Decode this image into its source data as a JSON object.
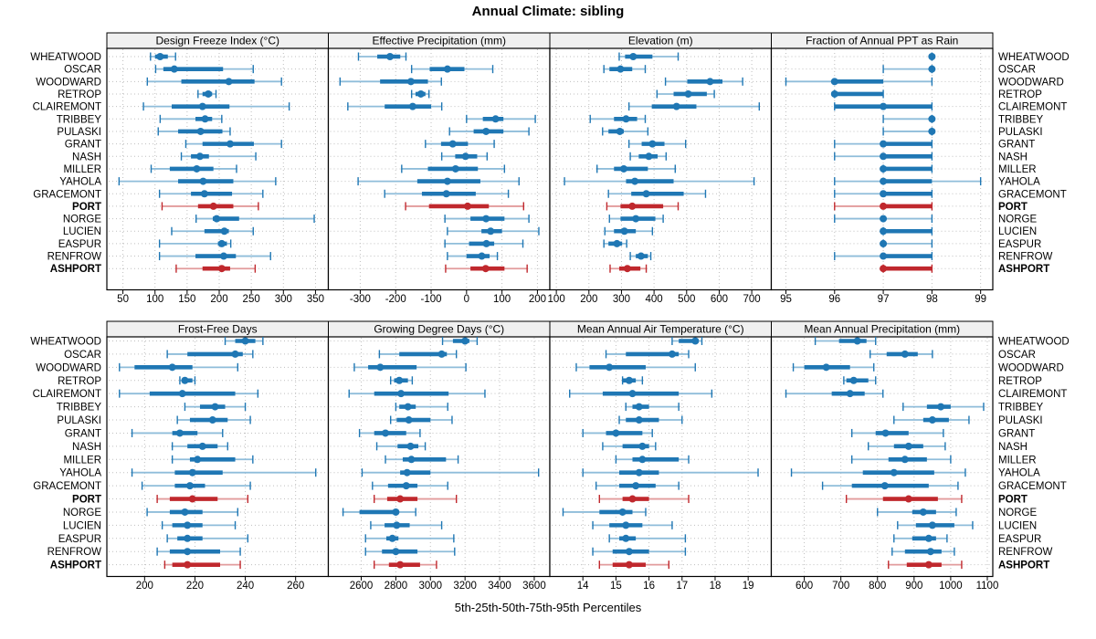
{
  "title": "Annual Climate: sibling",
  "caption": "5th-25th-50th-75th-95th Percentiles",
  "colors": {
    "normal": "#1f77b4",
    "normal_light": "#8fbdda",
    "highlight": "#c0282d",
    "highlight_light": "#e29b9c",
    "grid": "#bfbfbf",
    "strip_bg": "#f0f0f0",
    "border": "#000000"
  },
  "chart_data": {
    "type": "dot-interval",
    "percentiles": [
      5,
      25,
      50,
      75,
      95
    ],
    "rows": [
      "WHEATWOOD",
      "OSCAR",
      "WOODWARD",
      "RETROP",
      "CLAIREMONT",
      "TRIBBEY",
      "PULASKI",
      "GRANT",
      "NASH",
      "MILLER",
      "YAHOLA",
      "GRACEMONT",
      "PORT",
      "NORGE",
      "LUCIEN",
      "EASPUR",
      "RENFROW",
      "ASHPORT"
    ],
    "highlighted_rows": [
      "PORT",
      "ASHPORT"
    ],
    "panels": [
      {
        "title": "Design Freeze Index (°C)",
        "axis": {
          "min": 25,
          "max": 370,
          "ticks": [
            50,
            100,
            150,
            200,
            250,
            300,
            350
          ]
        },
        "values": [
          [
            93,
            100,
            108,
            120,
            132
          ],
          [
            101,
            113,
            130,
            206,
            253
          ],
          [
            88,
            141,
            215,
            255,
            297
          ],
          [
            167,
            174,
            183,
            189,
            195
          ],
          [
            82,
            126,
            174,
            216,
            309
          ],
          [
            108,
            163,
            178,
            189,
            204
          ],
          [
            105,
            136,
            171,
            205,
            217
          ],
          [
            148,
            174,
            217,
            254,
            297
          ],
          [
            141,
            156,
            170,
            184,
            257
          ],
          [
            94,
            123,
            165,
            191,
            227
          ],
          [
            44,
            136,
            175,
            222,
            288
          ],
          [
            107,
            156,
            177,
            220,
            268
          ],
          [
            111,
            167,
            191,
            222,
            261
          ],
          [
            164,
            190,
            196,
            231,
            348
          ],
          [
            126,
            177,
            208,
            215,
            253
          ],
          [
            107,
            198,
            204,
            212,
            218
          ],
          [
            107,
            163,
            207,
            226,
            280
          ],
          [
            133,
            174,
            204,
            217,
            256
          ]
        ]
      },
      {
        "title": "Effective Precipitation (mm)",
        "axis": {
          "min": -390,
          "max": 235,
          "ticks": [
            -300,
            -200,
            -100,
            0,
            100,
            200
          ]
        },
        "values": [
          [
            -305,
            -252,
            -216,
            -187,
            -171
          ],
          [
            -155,
            -104,
            -54,
            -6,
            74
          ],
          [
            -357,
            -244,
            -157,
            -109,
            -71
          ],
          [
            -155,
            -144,
            -129,
            -116,
            -106
          ],
          [
            -335,
            -231,
            -152,
            -100,
            -70
          ],
          [
            0,
            46,
            82,
            104,
            194
          ],
          [
            -48,
            20,
            55,
            104,
            176
          ],
          [
            -116,
            -72,
            -39,
            4,
            78
          ],
          [
            -70,
            -32,
            -3,
            30,
            58
          ],
          [
            -183,
            -109,
            -31,
            32,
            107
          ],
          [
            -306,
            -139,
            -54,
            39,
            148
          ],
          [
            -231,
            -126,
            -57,
            26,
            118
          ],
          [
            -172,
            -106,
            3,
            63,
            161
          ],
          [
            -61,
            11,
            55,
            107,
            176
          ],
          [
            -54,
            42,
            68,
            100,
            204
          ],
          [
            -61,
            7,
            56,
            78,
            159
          ],
          [
            -54,
            0,
            43,
            65,
            87
          ],
          [
            -59,
            11,
            54,
            107,
            171
          ]
        ]
      },
      {
        "title": "Elevation (m)",
        "axis": {
          "min": 80,
          "max": 760,
          "ticks": [
            100,
            200,
            300,
            400,
            500,
            600,
            700
          ]
        },
        "values": [
          [
            293,
            311,
            336,
            395,
            474
          ],
          [
            246,
            263,
            297,
            333,
            373
          ],
          [
            435,
            502,
            572,
            610,
            672
          ],
          [
            409,
            460,
            505,
            562,
            585
          ],
          [
            323,
            393,
            469,
            530,
            723
          ],
          [
            204,
            277,
            314,
            348,
            373
          ],
          [
            242,
            260,
            295,
            307,
            381
          ],
          [
            323,
            362,
            395,
            432,
            497
          ],
          [
            327,
            353,
            384,
            411,
            437
          ],
          [
            225,
            277,
            307,
            381,
            465
          ],
          [
            125,
            314,
            341,
            460,
            707
          ],
          [
            260,
            330,
            376,
            491,
            558
          ],
          [
            255,
            297,
            333,
            428,
            474
          ],
          [
            263,
            297,
            344,
            404,
            428
          ],
          [
            249,
            277,
            309,
            344,
            395
          ],
          [
            246,
            260,
            286,
            302,
            316
          ],
          [
            327,
            344,
            360,
            381,
            390
          ],
          [
            265,
            293,
            318,
            358,
            376
          ]
        ]
      },
      {
        "title": "Fraction of Annual PPT as Rain",
        "axis": {
          "min": 94.7,
          "max": 99.25,
          "ticks": [
            95,
            96,
            97,
            98,
            99
          ]
        },
        "values": [
          [
            98,
            98,
            98,
            98,
            98
          ],
          [
            97,
            98,
            98,
            98,
            98
          ],
          [
            95,
            96,
            96,
            97,
            98
          ],
          [
            96,
            96,
            96,
            97,
            97
          ],
          [
            96,
            96,
            97,
            98,
            98
          ],
          [
            97,
            98,
            98,
            98,
            98
          ],
          [
            97,
            98,
            98,
            98,
            98
          ],
          [
            96,
            97,
            97,
            98,
            98
          ],
          [
            96,
            97,
            97,
            98,
            98
          ],
          [
            97,
            97,
            97,
            98,
            98
          ],
          [
            96,
            97,
            97,
            98,
            99
          ],
          [
            96,
            97,
            97,
            98,
            98
          ],
          [
            96,
            97,
            97,
            98,
            98
          ],
          [
            96,
            97,
            97,
            97,
            98
          ],
          [
            97,
            97,
            97,
            98,
            98
          ],
          [
            97,
            97,
            97,
            97,
            98
          ],
          [
            96,
            97,
            97,
            98,
            98
          ],
          [
            97,
            97,
            97,
            98,
            98
          ]
        ]
      },
      {
        "title": "Frost-Free Days",
        "axis": {
          "min": 185,
          "max": 273,
          "ticks": [
            200,
            220,
            240,
            260
          ]
        },
        "values": [
          [
            232,
            236,
            240,
            244,
            247
          ],
          [
            209,
            217,
            236,
            239,
            243
          ],
          [
            190,
            196,
            211,
            219,
            237
          ],
          [
            214,
            215,
            216,
            219,
            220
          ],
          [
            190,
            202,
            215,
            236,
            245
          ],
          [
            216,
            222,
            228,
            232,
            240
          ],
          [
            213,
            218,
            227,
            233,
            242
          ],
          [
            195,
            211,
            214,
            221,
            231
          ],
          [
            211,
            217,
            223,
            229,
            233
          ],
          [
            211,
            218,
            221,
            236,
            243
          ],
          [
            195,
            212,
            219,
            231,
            268
          ],
          [
            199,
            212,
            218,
            224,
            242
          ],
          [
            205,
            210,
            219,
            229,
            241
          ],
          [
            201,
            210,
            216,
            223,
            237
          ],
          [
            207,
            211,
            217,
            223,
            236
          ],
          [
            209,
            213,
            217,
            223,
            241
          ],
          [
            205,
            210,
            217,
            230,
            238
          ],
          [
            208,
            211,
            217,
            230,
            238
          ]
        ]
      },
      {
        "title": "Growing Degree Days (°C)",
        "axis": {
          "min": 2410,
          "max": 3690,
          "ticks": [
            2600,
            2800,
            3000,
            3200,
            3400,
            3600
          ]
        },
        "values": [
          [
            3070,
            3130,
            3200,
            3225,
            3270
          ],
          [
            2705,
            2820,
            3065,
            3095,
            3150
          ],
          [
            2560,
            2640,
            2710,
            2920,
            3205
          ],
          [
            2770,
            2790,
            2820,
            2870,
            2895
          ],
          [
            2530,
            2675,
            2830,
            3105,
            3315
          ],
          [
            2800,
            2820,
            2870,
            2915,
            3100
          ],
          [
            2770,
            2805,
            2875,
            3000,
            3125
          ],
          [
            2590,
            2675,
            2740,
            2860,
            2940
          ],
          [
            2690,
            2810,
            2885,
            2930,
            2970
          ],
          [
            2740,
            2840,
            2890,
            3090,
            3160
          ],
          [
            2605,
            2825,
            2865,
            3000,
            3625
          ],
          [
            2665,
            2755,
            2860,
            2925,
            3100
          ],
          [
            2675,
            2750,
            2825,
            2925,
            3150
          ],
          [
            2495,
            2590,
            2800,
            2815,
            2915
          ],
          [
            2655,
            2735,
            2805,
            2880,
            3065
          ],
          [
            2625,
            2745,
            2780,
            2815,
            3135
          ],
          [
            2625,
            2720,
            2800,
            2925,
            3140
          ],
          [
            2675,
            2760,
            2825,
            2940,
            3035
          ]
        ]
      },
      {
        "title": "Mean Annual Air Temperature (°C)",
        "axis": {
          "min": 13,
          "max": 19.7,
          "ticks": [
            14,
            15,
            16,
            17,
            18,
            19
          ]
        },
        "values": [
          [
            16.7,
            16.9,
            17.4,
            17.5,
            17.6
          ],
          [
            14.7,
            15.3,
            16.7,
            16.9,
            17.2
          ],
          [
            13.8,
            14.2,
            14.8,
            15.9,
            17.4
          ],
          [
            15.2,
            15.2,
            15.4,
            15.6,
            15.8
          ],
          [
            13.6,
            14.6,
            15.5,
            16.9,
            17.9
          ],
          [
            15.3,
            15.5,
            15.7,
            16.0,
            16.9
          ],
          [
            15.1,
            15.3,
            15.7,
            16.3,
            17.0
          ],
          [
            14.0,
            14.7,
            15.0,
            15.8,
            16.1
          ],
          [
            14.6,
            15.2,
            15.8,
            16.0,
            16.2
          ],
          [
            15.0,
            15.5,
            15.8,
            16.9,
            17.2
          ],
          [
            14.0,
            15.1,
            15.7,
            16.3,
            19.3
          ],
          [
            14.4,
            15.1,
            15.6,
            16.2,
            16.9
          ],
          [
            14.5,
            15.2,
            15.5,
            16.0,
            17.2
          ],
          [
            13.4,
            14.5,
            15.2,
            15.5,
            15.9
          ],
          [
            14.3,
            14.8,
            15.3,
            15.8,
            16.7
          ],
          [
            14.8,
            15.1,
            15.3,
            15.6,
            17.1
          ],
          [
            14.3,
            14.9,
            15.4,
            16.0,
            17.1
          ],
          [
            14.5,
            14.9,
            15.4,
            15.9,
            16.6
          ]
        ]
      },
      {
        "title": "Mean Annual Precipitation (mm)",
        "axis": {
          "min": 510,
          "max": 1115,
          "ticks": [
            600,
            700,
            800,
            900,
            1000,
            1100
          ]
        },
        "values": [
          [
            630,
            695,
            745,
            770,
            795
          ],
          [
            780,
            825,
            875,
            910,
            950
          ],
          [
            570,
            600,
            660,
            725,
            790
          ],
          [
            708,
            715,
            735,
            775,
            795
          ],
          [
            550,
            675,
            725,
            765,
            815
          ],
          [
            870,
            935,
            973,
            1000,
            1090
          ],
          [
            845,
            925,
            950,
            995,
            1050
          ],
          [
            730,
            795,
            822,
            885,
            980
          ],
          [
            775,
            845,
            885,
            925,
            985
          ],
          [
            730,
            830,
            875,
            935,
            1000
          ],
          [
            565,
            760,
            845,
            955,
            1040
          ],
          [
            650,
            730,
            820,
            940,
            1020
          ],
          [
            715,
            815,
            885,
            965,
            1030
          ],
          [
            800,
            895,
            925,
            960,
            1015
          ],
          [
            855,
            905,
            950,
            1010,
            1060
          ],
          [
            845,
            895,
            940,
            960,
            990
          ],
          [
            840,
            875,
            945,
            975,
            1010
          ],
          [
            830,
            880,
            940,
            975,
            1030
          ]
        ]
      }
    ]
  }
}
